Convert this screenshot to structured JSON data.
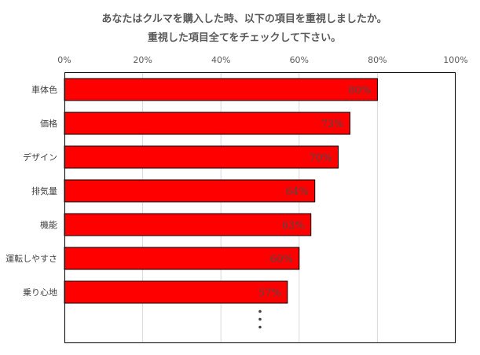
{
  "chart_data": {
    "type": "bar",
    "orientation": "horizontal",
    "title": [
      "あなたはクルマを購入した時、以下の項目を重視しましたか。",
      "重視した項目全てをチェックして下さい。"
    ],
    "categories": [
      "車体色",
      "価格",
      "デザイン",
      "排気量",
      "機能",
      "運転しやすさ",
      "乗り心地"
    ],
    "values": [
      80,
      73,
      70,
      64,
      63,
      60,
      57
    ],
    "data_labels": [
      "80%",
      "73%",
      "70%",
      "64%",
      "63%",
      "60%",
      "57%"
    ],
    "xlim": [
      0,
      100
    ],
    "x_ticks": [
      "0%",
      "20%",
      "40%",
      "60%",
      "80%",
      "100%"
    ],
    "x_axis_position": "top",
    "grid": true,
    "bar_color": "#ff0000",
    "continuation_mark": "・\n・\n・"
  }
}
